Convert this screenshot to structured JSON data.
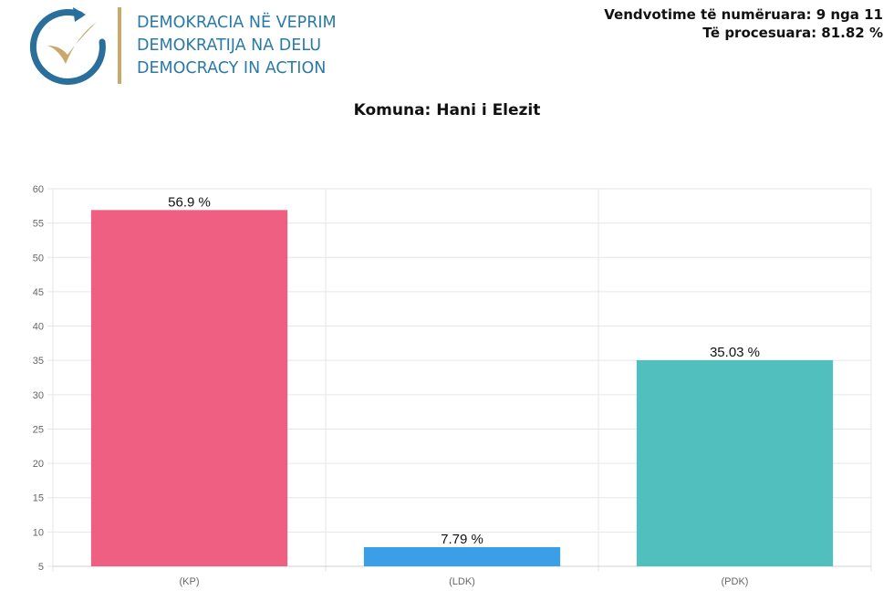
{
  "brand": {
    "lines": [
      "DEMOKRACIA NË VEPRIM",
      "DEMOKRATIJA NA DELU",
      "DEMOCRACY IN ACTION"
    ],
    "text_color": "#2a7aa8",
    "ring_color": "#2a6f9c",
    "check_color": "#c9a86a"
  },
  "status": {
    "counted": "Vendvotime të numëruara: 9 nga 11",
    "processed": "Të procesuara: 81.82 %"
  },
  "chart_data": {
    "type": "bar",
    "title": "Komuna: Hani i Elezit",
    "categories": [
      "(KP)",
      "(LDK)",
      "(PDK)"
    ],
    "values": [
      56.9,
      7.79,
      35.03
    ],
    "labels": [
      "56.9 %",
      "7.79 %",
      "35.03 %"
    ],
    "colors": [
      "#ee5f81",
      "#3a9fe6",
      "#52bfbf"
    ],
    "ylim": [
      5,
      60
    ],
    "yticks": [
      5,
      10,
      15,
      20,
      25,
      30,
      35,
      40,
      45,
      50,
      55,
      60
    ],
    "grid": true,
    "xlabel": "",
    "ylabel": ""
  }
}
